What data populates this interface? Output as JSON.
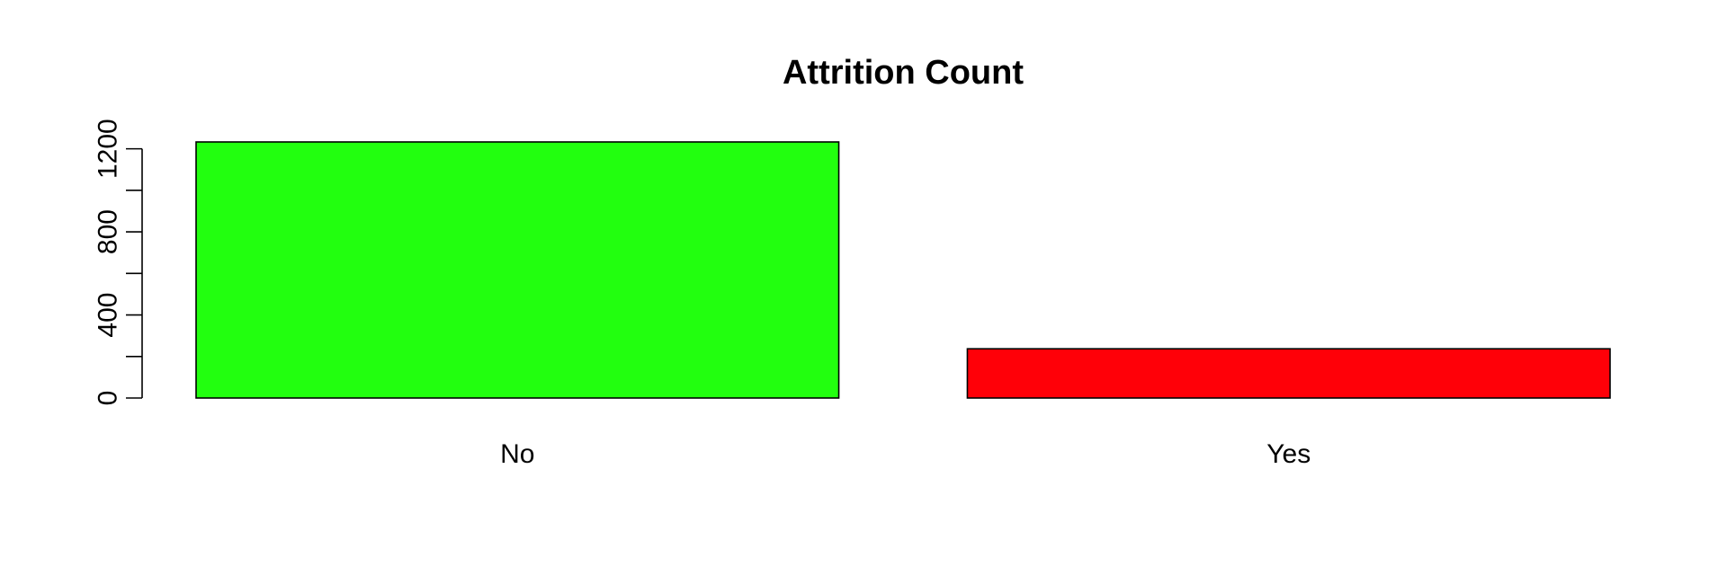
{
  "chart_data": {
    "type": "bar",
    "title": "Attrition Count",
    "xlabel": "",
    "ylabel": "",
    "categories": [
      "No",
      "Yes"
    ],
    "values": [
      1233,
      237
    ],
    "colors": [
      "#22ff0f",
      "#ff0008"
    ],
    "ylim": [
      0,
      1233
    ],
    "yticks": [
      0,
      200,
      400,
      600,
      800,
      1000,
      1200
    ],
    "ytick_labels": [
      "0",
      "",
      "400",
      "",
      "800",
      "",
      "1200"
    ],
    "grid": false,
    "legend": "none"
  }
}
